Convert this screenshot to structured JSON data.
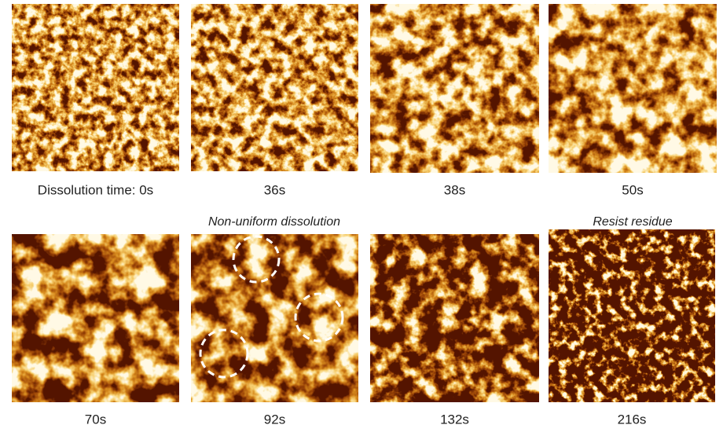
{
  "panels": [
    {
      "label": "Dissolution time: 0s"
    },
    {
      "label": "36s"
    },
    {
      "label": "38s"
    },
    {
      "label": "50s"
    },
    {
      "label": "70s"
    },
    {
      "label": "92s"
    },
    {
      "label": "132s"
    },
    {
      "label": "216s"
    }
  ],
  "annotations": [
    {
      "text": "Non-uniform dissolution"
    },
    {
      "text": "Resist residue"
    }
  ]
}
